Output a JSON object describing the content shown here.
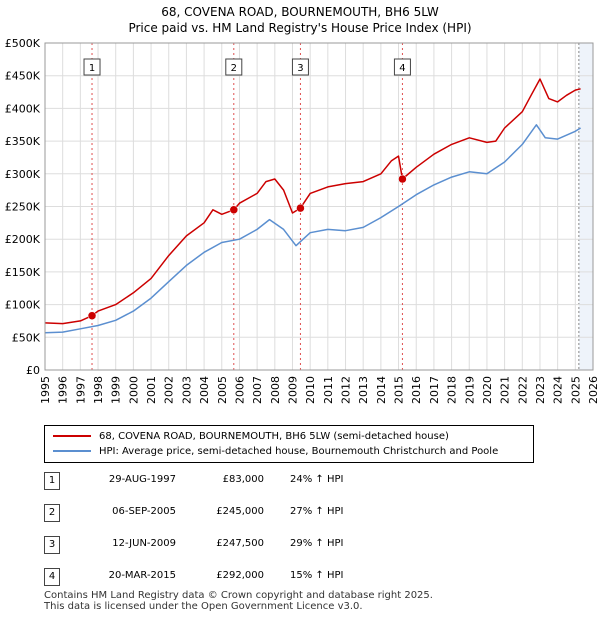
{
  "header": {
    "title": "68, COVENA ROAD, BOURNEMOUTH, BH6 5LW",
    "subtitle": "Price paid vs. HM Land Registry's House Price Index (HPI)"
  },
  "legend": {
    "property_label": "68, COVENA ROAD, BOURNEMOUTH, BH6 5LW (semi-detached house)",
    "hpi_label": "HPI: Average price, semi-detached house, Bournemouth Christchurch and Poole"
  },
  "colors": {
    "property": "#cc0000",
    "hpi": "#5b8fd0",
    "grid": "#dddddd",
    "shade": "#eef3fa",
    "marker_line": "#e05050"
  },
  "sales": [
    {
      "num": "1",
      "date": "29-AUG-1997",
      "price": "£83,000",
      "hpi_change": "24% ↑ HPI",
      "year": 1997.66,
      "value": 83000
    },
    {
      "num": "2",
      "date": "06-SEP-2005",
      "price": "£245,000",
      "hpi_change": "27% ↑ HPI",
      "year": 2005.68,
      "value": 245000
    },
    {
      "num": "3",
      "date": "12-JUN-2009",
      "price": "£247,500",
      "hpi_change": "29% ↑ HPI",
      "year": 2009.45,
      "value": 247500
    },
    {
      "num": "4",
      "date": "20-MAR-2015",
      "price": "£292,000",
      "hpi_change": "15% ↑ HPI",
      "year": 2015.22,
      "value": 292000
    }
  ],
  "footer": {
    "line1": "Contains HM Land Registry data © Crown copyright and database right 2025.",
    "line2": "This data is licensed under the Open Government Licence v3.0."
  },
  "chart_data": {
    "type": "line",
    "xlabel": "",
    "ylabel": "",
    "xlim": [
      1995,
      2026
    ],
    "ylim": [
      0,
      500000
    ],
    "x_ticks": [
      1995,
      1996,
      1997,
      1998,
      1999,
      2000,
      2001,
      2002,
      2003,
      2004,
      2005,
      2006,
      2007,
      2008,
      2009,
      2010,
      2011,
      2012,
      2013,
      2014,
      2015,
      2016,
      2017,
      2018,
      2019,
      2020,
      2021,
      2022,
      2023,
      2024,
      2025,
      2026
    ],
    "y_ticks": [
      {
        "value": 0,
        "label": "£0"
      },
      {
        "value": 50000,
        "label": "£50K"
      },
      {
        "value": 100000,
        "label": "£100K"
      },
      {
        "value": 150000,
        "label": "£150K"
      },
      {
        "value": 200000,
        "label": "£200K"
      },
      {
        "value": 250000,
        "label": "£250K"
      },
      {
        "value": 300000,
        "label": "£300K"
      },
      {
        "value": 350000,
        "label": "£350K"
      },
      {
        "value": 400000,
        "label": "£400K"
      },
      {
        "value": 450000,
        "label": "£450K"
      },
      {
        "value": 500000,
        "label": "£500K"
      }
    ],
    "shaded_after": 2025.2,
    "series": [
      {
        "name": "68, COVENA ROAD, BOURNEMOUTH, BH6 5LW (semi-detached house)",
        "color": "#cc0000",
        "x": [
          1995,
          1996,
          1997,
          1997.66,
          1998,
          1999,
          2000,
          2001,
          2002,
          2003,
          2004,
          2004.5,
          2005,
          2005.68,
          2006,
          2007,
          2007.5,
          2008,
          2008.5,
          2009,
          2009.45,
          2010,
          2011,
          2012,
          2013,
          2014,
          2014.6,
          2015,
          2015.22,
          2016,
          2017,
          2018,
          2019,
          2020,
          2020.5,
          2021,
          2022,
          2022.5,
          2023,
          2023.5,
          2024,
          2024.5,
          2025,
          2025.3
        ],
        "values": [
          72000,
          71000,
          75000,
          83000,
          90000,
          100000,
          118000,
          140000,
          175000,
          205000,
          225000,
          245000,
          238000,
          245000,
          255000,
          270000,
          288000,
          292000,
          275000,
          240000,
          247500,
          270000,
          280000,
          285000,
          288000,
          300000,
          320000,
          327000,
          292000,
          310000,
          330000,
          345000,
          355000,
          348000,
          350000,
          370000,
          395000,
          420000,
          445000,
          415000,
          410000,
          420000,
          428000,
          430000
        ]
      },
      {
        "name": "HPI: Average price, semi-detached house, Bournemouth Christchurch and Poole",
        "color": "#5b8fd0",
        "x": [
          1995,
          1996,
          1997,
          1998,
          1999,
          2000,
          2001,
          2002,
          2003,
          2004,
          2005,
          2006,
          2007,
          2007.7,
          2008.5,
          2009.2,
          2010,
          2011,
          2012,
          2013,
          2014,
          2015,
          2016,
          2017,
          2018,
          2019,
          2020,
          2021,
          2022,
          2022.8,
          2023.3,
          2024,
          2025,
          2025.3
        ],
        "values": [
          57000,
          58000,
          63000,
          68000,
          76000,
          90000,
          110000,
          135000,
          160000,
          180000,
          195000,
          200000,
          215000,
          230000,
          215000,
          190000,
          210000,
          215000,
          213000,
          218000,
          233000,
          250000,
          268000,
          283000,
          295000,
          303000,
          300000,
          318000,
          345000,
          375000,
          355000,
          353000,
          365000,
          370000
        ]
      }
    ]
  }
}
